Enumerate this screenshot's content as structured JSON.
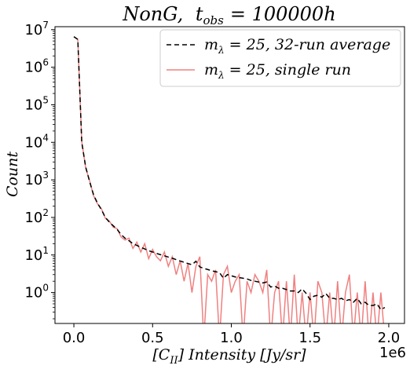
{
  "chart_data": {
    "type": "line",
    "title": "NonG, t_obs = 100000h",
    "title_parts": {
      "main": "NonG,",
      "t": "t",
      "sub": "obs",
      "rest": "= 100000h"
    },
    "xlabel": "[C_II] Intensity [Jy/sr]",
    "xlabel_parts": {
      "open": "[C",
      "sub": "II",
      "rest": "] Intensity [Jy/sr]"
    },
    "ylabel": "Count",
    "x_offset_text": "1e6",
    "xlim": [
      -120000,
      2100000
    ],
    "ylim": [
      0.15,
      12000000
    ],
    "y_scale": "log",
    "x_ticks": [
      0,
      500000,
      1000000,
      1500000,
      2000000
    ],
    "x_tick_labels": [
      "0.0",
      "0.5",
      "1.0",
      "1.5",
      "2.0"
    ],
    "y_ticks": [
      1,
      10,
      100,
      1000,
      10000,
      100000,
      1000000,
      10000000
    ],
    "y_tick_labels": [
      {
        "base": "10",
        "exp": "0"
      },
      {
        "base": "10",
        "exp": "1"
      },
      {
        "base": "10",
        "exp": "2"
      },
      {
        "base": "10",
        "exp": "3"
      },
      {
        "base": "10",
        "exp": "4"
      },
      {
        "base": "10",
        "exp": "5"
      },
      {
        "base": "10",
        "exp": "6"
      },
      {
        "base": "10",
        "exp": "7"
      }
    ],
    "legend": {
      "position": "top-right",
      "entries": [
        {
          "prefix": "m",
          "sub": "λ",
          "text": " = 25, 32-run average"
        },
        {
          "prefix": "m",
          "sub": "λ",
          "text": " = 25, single run"
        }
      ]
    },
    "grid": false,
    "series": [
      {
        "name": "m_λ = 25, 32-run average",
        "color": "#000000",
        "dash": "6,4",
        "x": [
          0,
          25000,
          50000,
          75000,
          100000,
          125000,
          150000,
          175000,
          200000,
          225000,
          250000,
          275000,
          300000,
          325000,
          350000,
          375000,
          400000,
          425000,
          450000,
          475000,
          500000,
          525000,
          550000,
          575000,
          600000,
          625000,
          650000,
          675000,
          700000,
          725000,
          750000,
          775000,
          800000,
          825000,
          850000,
          875000,
          900000,
          925000,
          950000,
          975000,
          1000000,
          1025000,
          1050000,
          1075000,
          1100000,
          1125000,
          1150000,
          1175000,
          1200000,
          1225000,
          1250000,
          1275000,
          1300000,
          1325000,
          1350000,
          1375000,
          1400000,
          1425000,
          1450000,
          1475000,
          1500000,
          1525000,
          1550000,
          1575000,
          1600000,
          1625000,
          1650000,
          1675000,
          1700000,
          1725000,
          1750000,
          1775000,
          1800000,
          1825000,
          1850000,
          1875000,
          1900000,
          1925000,
          1950000,
          1975000
        ],
        "y": [
          6500000,
          5500000,
          10000,
          2200,
          900,
          400,
          240,
          160,
          100,
          75,
          60,
          48,
          35,
          28,
          24,
          20,
          18,
          16,
          14.5,
          13,
          12,
          11,
          10.2,
          9.5,
          8.8,
          8.2,
          7.5,
          6.9,
          6.4,
          5.9,
          5.5,
          6.8,
          4.8,
          4.4,
          4.1,
          3.8,
          3.6,
          3.4,
          2.4,
          3.0,
          2.8,
          2.6,
          2.5,
          2.4,
          2.3,
          2.1,
          2.0,
          1.9,
          1.8,
          1.9,
          1.4,
          1.5,
          1.3,
          1.3,
          1.2,
          1.1,
          1.1,
          1.0,
          1.25,
          0.95,
          0.65,
          0.8,
          0.85,
          0.75,
          0.95,
          0.7,
          0.7,
          0.65,
          0.7,
          0.6,
          0.65,
          0.55,
          0.7,
          0.5,
          0.55,
          0.45,
          0.45,
          0.5,
          0.35,
          0.4
        ]
      },
      {
        "name": "m_λ = 25, single run",
        "color": "#f08080",
        "dash": "",
        "x": [
          0,
          25000,
          50000,
          75000,
          100000,
          125000,
          150000,
          175000,
          200000,
          225000,
          250000,
          275000,
          300000,
          325000,
          350000,
          375000,
          400000,
          425000,
          450000,
          475000,
          500000,
          525000,
          550000,
          575000,
          600000,
          625000,
          650000,
          675000,
          700000,
          725000,
          750000,
          775000,
          800000,
          825000,
          850000,
          875000,
          900000,
          925000,
          950000,
          975000,
          1000000,
          1025000,
          1050000,
          1075000,
          1100000,
          1125000,
          1150000,
          1175000,
          1200000,
          1225000,
          1250000,
          1275000,
          1300000,
          1325000,
          1350000,
          1375000,
          1400000,
          1425000,
          1450000,
          1475000,
          1500000,
          1525000,
          1550000,
          1575000,
          1600000,
          1625000,
          1650000,
          1675000,
          1700000,
          1725000,
          1750000,
          1775000,
          1800000,
          1825000,
          1850000,
          1875000,
          1900000,
          1925000,
          1950000,
          1975000
        ],
        "y": [
          6500000,
          5500000,
          10500,
          2100,
          950,
          380,
          230,
          170,
          95,
          80,
          55,
          50,
          30,
          25,
          28,
          15,
          22,
          12,
          20,
          8,
          14,
          9,
          7,
          12,
          5,
          9,
          3,
          7,
          2,
          6,
          1,
          5,
          9,
          0,
          3,
          2,
          4,
          0,
          3,
          5,
          1,
          2,
          3,
          0,
          2,
          1,
          3,
          2,
          1,
          4,
          0,
          1,
          2,
          0,
          2,
          0,
          3,
          0,
          1,
          0,
          1,
          0,
          2,
          1,
          0,
          1,
          0,
          2,
          0,
          1,
          3,
          0,
          1,
          0,
          2,
          0,
          1,
          0,
          1,
          0
        ]
      }
    ]
  }
}
